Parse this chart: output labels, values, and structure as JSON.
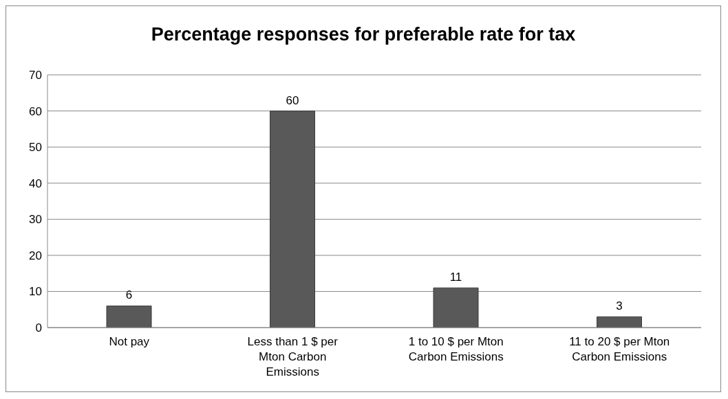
{
  "chart_data": {
    "type": "bar",
    "title": "Percentage responses for preferable rate for tax",
    "categories": [
      "Not pay",
      "Less than 1 $ per Mton Carbon Emissions",
      "1 to 10 $ per Mton Carbon Emissions",
      "11 to 20 $ per Mton Carbon Emissions"
    ],
    "values": [
      6,
      60,
      11,
      3
    ],
    "color": "#595959",
    "ylim": [
      0,
      70
    ],
    "yticks": [
      0,
      10,
      20,
      30,
      40,
      50,
      60,
      70
    ],
    "grid": "y",
    "data_labels": true
  }
}
